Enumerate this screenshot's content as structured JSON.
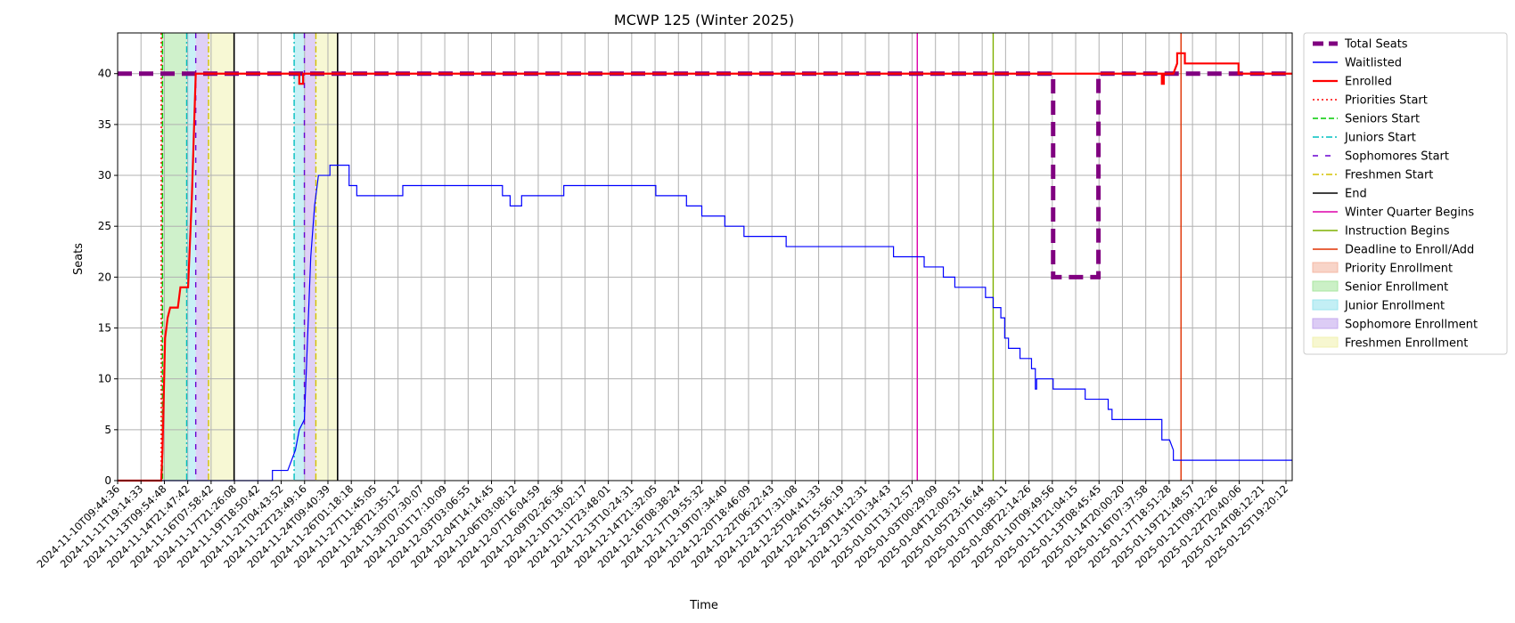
{
  "chart_data": {
    "type": "line",
    "title": "MCWP 125 (Winter 2025)",
    "xlabel": "Time",
    "ylabel": "Seats",
    "ylim": [
      0,
      44
    ],
    "yticks": [
      0,
      5,
      10,
      15,
      20,
      25,
      30,
      35,
      40
    ],
    "x_range": [
      "2024-11-10T09:44:36",
      "2025-01-26T00:00:00"
    ],
    "grid": true,
    "legend_position": "outside-right",
    "xtick_labels": [
      "2024-11-10T09:44:36",
      "2024-11-11T19:14:33",
      "2024-11-13T09:54:48",
      "2024-11-14T21:47:42",
      "2024-11-16T07:58:42",
      "2024-11-17T21:26:08",
      "2024-11-19T18:50:42",
      "2024-11-21T04:43:52",
      "2024-11-22T23:49:16",
      "2024-11-24T09:40:39",
      "2024-11-26T01:18:18",
      "2024-11-27T11:45:05",
      "2024-11-28T21:35:12",
      "2024-11-30T07:30:07",
      "2024-12-01T17:10:09",
      "2024-12-03T03:06:55",
      "2024-12-04T14:14:45",
      "2024-12-06T03:08:12",
      "2024-12-07T16:04:59",
      "2024-12-09T02:26:36",
      "2024-12-10T13:02:17",
      "2024-12-11T23:48:01",
      "2024-12-13T10:24:31",
      "2024-12-14T21:32:05",
      "2024-12-16T08:38:24",
      "2024-12-17T19:55:32",
      "2024-12-19T07:34:40",
      "2024-12-20T18:46:09",
      "2024-12-22T06:22:43",
      "2024-12-23T17:31:08",
      "2024-12-25T04:41:33",
      "2024-12-26T15:56:19",
      "2024-12-29T14:12:31",
      "2024-12-31T01:34:43",
      "2025-01-01T13:12:57",
      "2025-01-03T00:29:09",
      "2025-01-04T12:00:51",
      "2025-01-05T23:16:44",
      "2025-01-07T10:58:11",
      "2025-01-08T22:14:26",
      "2025-01-10T09:49:56",
      "2025-01-11T21:04:15",
      "2025-01-13T08:45:45",
      "2025-01-14T20:00:20",
      "2025-01-16T07:37:58",
      "2025-01-17T18:51:28",
      "2025-01-19T21:48:57",
      "2025-01-21T09:12:26",
      "2025-01-22T20:40:06",
      "2025-01-24T08:12:21",
      "2025-01-25T19:20:12"
    ],
    "series": [
      {
        "name": "Total Seats",
        "color": "#800080",
        "style": "dashed-thick",
        "points": [
          [
            "2024-11-10T09:44:36",
            40
          ],
          [
            "2025-01-10T09:49:56",
            40
          ],
          [
            "2025-01-10T09:49:56",
            20
          ],
          [
            "2025-01-13T08:45:45",
            20
          ],
          [
            "2025-01-13T08:45:45",
            40
          ],
          [
            "2025-01-26T00:00:00",
            40
          ]
        ]
      },
      {
        "name": "Waitlisted",
        "color": "#0000ff",
        "style": "solid-thin",
        "points": [
          [
            "2024-11-10T09:44:36",
            0
          ],
          [
            "2024-11-20T12:00:00",
            0
          ],
          [
            "2024-11-20T12:00:00",
            1
          ],
          [
            "2024-11-21T12:00:00",
            1
          ],
          [
            "2024-11-22T00:00:00",
            3
          ],
          [
            "2024-11-22T06:00:00",
            5
          ],
          [
            "2024-11-22T14:00:00",
            6
          ],
          [
            "2024-11-23T00:00:00",
            22
          ],
          [
            "2024-11-23T06:00:00",
            27
          ],
          [
            "2024-11-23T12:00:00",
            30
          ],
          [
            "2024-11-24T06:00:00",
            30
          ],
          [
            "2024-11-24T06:00:00",
            31
          ],
          [
            "2024-11-25T12:00:00",
            31
          ],
          [
            "2024-11-25T12:00:00",
            29
          ],
          [
            "2024-11-26T00:00:00",
            29
          ],
          [
            "2024-11-26T00:00:00",
            28
          ],
          [
            "2024-11-29T00:00:00",
            28
          ],
          [
            "2024-11-29T00:00:00",
            29
          ],
          [
            "2024-12-05T12:00:00",
            29
          ],
          [
            "2024-12-05T12:00:00",
            28
          ],
          [
            "2024-12-06T00:00:00",
            28
          ],
          [
            "2024-12-06T00:00:00",
            27
          ],
          [
            "2024-12-06T18:00:00",
            27
          ],
          [
            "2024-12-06T18:00:00",
            28
          ],
          [
            "2024-12-09T12:00:00",
            28
          ],
          [
            "2024-12-09T12:00:00",
            29
          ],
          [
            "2024-12-15T12:00:00",
            29
          ],
          [
            "2024-12-15T12:00:00",
            28
          ],
          [
            "2024-12-17T12:00:00",
            28
          ],
          [
            "2024-12-17T12:00:00",
            27
          ],
          [
            "2024-12-18T12:00:00",
            27
          ],
          [
            "2024-12-18T12:00:00",
            26
          ],
          [
            "2024-12-20T00:00:00",
            26
          ],
          [
            "2024-12-20T00:00:00",
            25
          ],
          [
            "2024-12-21T06:00:00",
            25
          ],
          [
            "2024-12-21T06:00:00",
            24
          ],
          [
            "2024-12-24T00:00:00",
            24
          ],
          [
            "2024-12-24T00:00:00",
            23
          ],
          [
            "2024-12-31T00:00:00",
            23
          ],
          [
            "2024-12-31T00:00:00",
            22
          ],
          [
            "2025-01-02T00:00:00",
            22
          ],
          [
            "2025-01-02T00:00:00",
            21
          ],
          [
            "2025-01-03T06:00:00",
            21
          ],
          [
            "2025-01-03T06:00:00",
            20
          ],
          [
            "2025-01-04T00:00:00",
            20
          ],
          [
            "2025-01-04T00:00:00",
            19
          ],
          [
            "2025-01-06T00:00:00",
            19
          ],
          [
            "2025-01-06T00:00:00",
            18
          ],
          [
            "2025-01-06T12:00:00",
            18
          ],
          [
            "2025-01-06T12:00:00",
            17
          ],
          [
            "2025-01-07T00:00:00",
            17
          ],
          [
            "2025-01-07T00:00:00",
            16
          ],
          [
            "2025-01-07T06:00:00",
            16
          ],
          [
            "2025-01-07T06:00:00",
            14
          ],
          [
            "2025-01-07T12:00:00",
            14
          ],
          [
            "2025-01-07T12:00:00",
            13
          ],
          [
            "2025-01-08T06:00:00",
            13
          ],
          [
            "2025-01-08T06:00:00",
            12
          ],
          [
            "2025-01-09T00:00:00",
            12
          ],
          [
            "2025-01-09T00:00:00",
            11
          ],
          [
            "2025-01-09T06:00:00",
            11
          ],
          [
            "2025-01-09T06:00:00",
            9
          ],
          [
            "2025-01-09T08:00:00",
            9
          ],
          [
            "2025-01-09T08:00:00",
            10
          ],
          [
            "2025-01-10T09:49:56",
            10
          ],
          [
            "2025-01-10T09:49:56",
            9
          ],
          [
            "2025-01-12T12:00:00",
            9
          ],
          [
            "2025-01-12T12:00:00",
            8
          ],
          [
            "2025-01-14T00:00:00",
            8
          ],
          [
            "2025-01-14T00:00:00",
            7
          ],
          [
            "2025-01-14T06:00:00",
            7
          ],
          [
            "2025-01-14T06:00:00",
            6
          ],
          [
            "2025-01-17T12:00:00",
            6
          ],
          [
            "2025-01-17T12:00:00",
            4
          ],
          [
            "2025-01-18T00:00:00",
            4
          ],
          [
            "2025-01-18T06:00:00",
            3
          ],
          [
            "2025-01-18T06:00:00",
            2
          ],
          [
            "2025-01-26T00:00:00",
            2
          ]
        ]
      },
      {
        "name": "Enrolled",
        "color": "#ff0000",
        "style": "solid-thick",
        "points": [
          [
            "2024-11-10T09:44:36",
            0
          ],
          [
            "2024-11-13T06:00:00",
            0
          ],
          [
            "2024-11-13T08:00:00",
            3
          ],
          [
            "2024-11-13T12:00:00",
            14
          ],
          [
            "2024-11-13T16:00:00",
            16
          ],
          [
            "2024-11-13T20:00:00",
            17
          ],
          [
            "2024-11-14T08:00:00",
            17
          ],
          [
            "2024-11-14T12:00:00",
            19
          ],
          [
            "2024-11-15T00:00:00",
            19
          ],
          [
            "2024-11-15T06:00:00",
            28
          ],
          [
            "2024-11-15T12:00:00",
            40
          ],
          [
            "2024-11-22T06:00:00",
            40
          ],
          [
            "2024-11-22T06:00:00",
            39
          ],
          [
            "2024-11-22T12:00:00",
            39
          ],
          [
            "2024-11-22T12:00:00",
            40
          ],
          [
            "2025-01-17T12:00:00",
            40
          ],
          [
            "2025-01-17T12:00:00",
            39
          ],
          [
            "2025-01-17T15:00:00",
            39
          ],
          [
            "2025-01-17T15:00:00",
            40
          ],
          [
            "2025-01-18T06:00:00",
            40
          ],
          [
            "2025-01-18T12:00:00",
            41
          ],
          [
            "2025-01-18T12:00:00",
            42
          ],
          [
            "2025-01-19T00:00:00",
            42
          ],
          [
            "2025-01-19T00:00:00",
            41
          ],
          [
            "2025-01-22T12:00:00",
            41
          ],
          [
            "2025-01-22T12:00:00",
            40
          ],
          [
            "2025-01-26T00:00:00",
            40
          ]
        ]
      }
    ],
    "spans": [
      {
        "name": "Priority Enrollment",
        "color": "#f4b8a4",
        "start": "2024-11-13T06:00:00",
        "end": "2024-11-13T08:00:00"
      },
      {
        "name": "Senior Enrollment",
        "color": "#a8e6a0",
        "start": "2024-11-13T08:00:00",
        "end": "2024-11-14T21:47:42"
      },
      {
        "name": "Junior Enrollment",
        "color": "#9be5ee",
        "start": "2024-11-14T21:47:42",
        "end": "2024-11-15T12:00:00"
      },
      {
        "name": "Sophomore Enrollment",
        "color": "#c4aaee",
        "start": "2024-11-15T12:00:00",
        "end": "2024-11-16T07:58:42"
      },
      {
        "name": "Freshmen Enrollment",
        "color": "#f1f2b0",
        "start": "2024-11-16T07:58:42",
        "end": "2024-11-18T00:00:00"
      },
      {
        "name": "Junior Enrollment",
        "color": "#9be5ee",
        "start": "2024-11-21T22:00:00",
        "end": "2024-11-22T14:00:00"
      },
      {
        "name": "Sophomore Enrollment",
        "color": "#c4aaee",
        "start": "2024-11-22T14:00:00",
        "end": "2024-11-23T08:00:00"
      },
      {
        "name": "Freshmen Enrollment",
        "color": "#f1f2b0",
        "start": "2024-11-23T08:00:00",
        "end": "2024-11-24T18:00:00"
      }
    ],
    "markers": [
      {
        "name": "Priorities Start",
        "color": "#ff0000",
        "dash": "dotted",
        "time": "2024-11-13T06:00:00"
      },
      {
        "name": "Seniors Start",
        "color": "#00cc00",
        "dash": "dashed",
        "time": "2024-11-13T08:00:00"
      },
      {
        "name": "Juniors Start",
        "color": "#00bfbf",
        "dash": "dashdot",
        "time": "2024-11-14T21:47:42"
      },
      {
        "name": "Sophomores Start",
        "color": "#6a00d0",
        "dash": "loose",
        "time": "2024-11-15T12:00:00"
      },
      {
        "name": "Freshmen Start",
        "color": "#d4c200",
        "dash": "dashdot",
        "time": "2024-11-16T07:58:42"
      },
      {
        "name": "End",
        "color": "#000000",
        "dash": "solid",
        "time": "2024-11-18T00:00:00"
      },
      {
        "name": "Juniors Start",
        "color": "#00bfbf",
        "dash": "dashdot",
        "time": "2024-11-21T22:00:00"
      },
      {
        "name": "Sophomores Start",
        "color": "#6a00d0",
        "dash": "loose",
        "time": "2024-11-22T14:00:00"
      },
      {
        "name": "Freshmen Start",
        "color": "#d4c200",
        "dash": "dashdot",
        "time": "2024-11-23T08:00:00"
      },
      {
        "name": "End",
        "color": "#000000",
        "dash": "solid",
        "time": "2024-11-24T18:00:00"
      },
      {
        "name": "Winter Quarter Begins",
        "color": "#dd00aa",
        "dash": "solid",
        "time": "2025-01-01T13:12:57"
      },
      {
        "name": "Instruction Begins",
        "color": "#7fb000",
        "dash": "solid",
        "time": "2025-01-06T12:00:00"
      },
      {
        "name": "Deadline to Enroll/Add",
        "color": "#e03000",
        "dash": "solid",
        "time": "2025-01-18T18:00:00"
      }
    ],
    "legend": [
      {
        "label": "Total Seats",
        "kind": "line",
        "color": "#800080",
        "dash": "thick"
      },
      {
        "label": "Waitlisted",
        "kind": "line",
        "color": "#0000ff",
        "dash": "solid"
      },
      {
        "label": "Enrolled",
        "kind": "line",
        "color": "#ff0000",
        "dash": "solid2"
      },
      {
        "label": "Priorities Start",
        "kind": "line",
        "color": "#ff0000",
        "dash": "dotted"
      },
      {
        "label": "Seniors Start",
        "kind": "line",
        "color": "#00cc00",
        "dash": "dashed"
      },
      {
        "label": "Juniors Start",
        "kind": "line",
        "color": "#00bfbf",
        "dash": "dashdot"
      },
      {
        "label": "Sophomores Start",
        "kind": "line",
        "color": "#6a00d0",
        "dash": "loose"
      },
      {
        "label": "Freshmen Start",
        "kind": "line",
        "color": "#d4c200",
        "dash": "dashdot"
      },
      {
        "label": "End",
        "kind": "line",
        "color": "#000000",
        "dash": "solid"
      },
      {
        "label": "Winter Quarter Begins",
        "kind": "line",
        "color": "#dd00aa",
        "dash": "solid"
      },
      {
        "label": "Instruction Begins",
        "kind": "line",
        "color": "#7fb000",
        "dash": "solid"
      },
      {
        "label": "Deadline to Enroll/Add",
        "kind": "line",
        "color": "#e03000",
        "dash": "solid"
      },
      {
        "label": "Priority Enrollment",
        "kind": "patch",
        "color": "#f4b8a4"
      },
      {
        "label": "Senior Enrollment",
        "kind": "patch",
        "color": "#a8e6a0"
      },
      {
        "label": "Junior Enrollment",
        "kind": "patch",
        "color": "#9be5ee"
      },
      {
        "label": "Sophomore Enrollment",
        "kind": "patch",
        "color": "#c4aaee"
      },
      {
        "label": "Freshmen Enrollment",
        "kind": "patch",
        "color": "#f1f2b0"
      }
    ]
  }
}
